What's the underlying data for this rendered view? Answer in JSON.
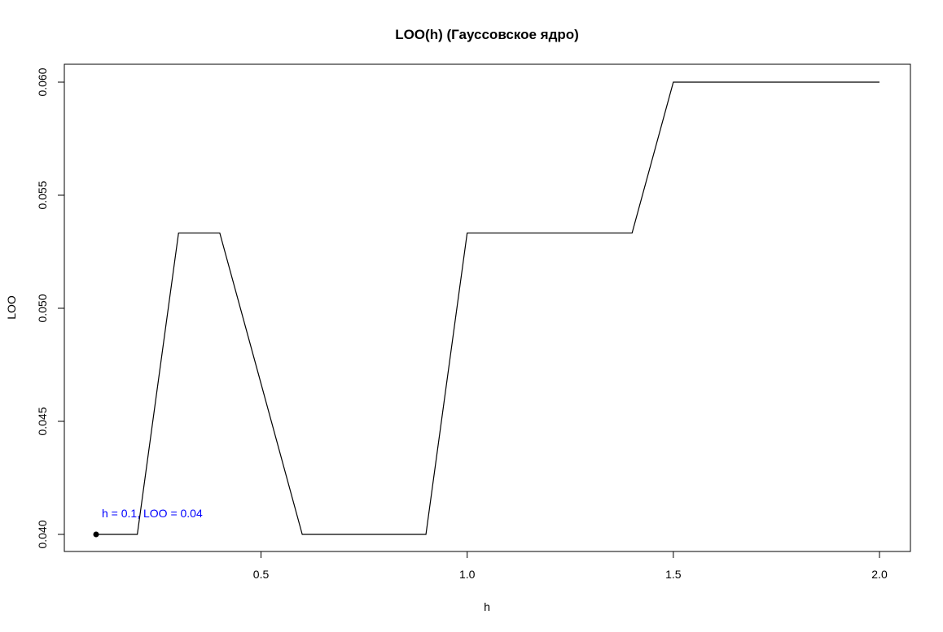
{
  "chart_data": {
    "type": "line",
    "title": "LOO(h) (Гауссовское ядро)",
    "xlabel": "h",
    "ylabel": "LOO",
    "xlim": [
      0.1,
      2.0
    ],
    "ylim": [
      0.04,
      0.06
    ],
    "x_ticks": [
      0.5,
      1.0,
      1.5,
      2.0
    ],
    "x_tick_labels": [
      "0.5",
      "1.0",
      "1.5",
      "2.0"
    ],
    "y_ticks": [
      0.04,
      0.045,
      0.05,
      0.055,
      0.06
    ],
    "y_tick_labels": [
      "0.040",
      "0.045",
      "0.050",
      "0.055",
      "0.060"
    ],
    "grid": false,
    "line_color": "#000000",
    "series": [
      {
        "x": [
          0.1,
          0.2,
          0.3,
          0.4,
          0.5,
          0.6,
          0.7,
          0.8,
          0.9,
          1.0,
          1.1,
          1.2,
          1.3,
          1.4,
          1.5,
          1.6,
          1.7,
          1.8,
          1.9,
          2.0
        ],
        "values": [
          0.04,
          0.04,
          0.05333,
          0.05333,
          0.04667,
          0.04,
          0.04,
          0.04,
          0.04,
          0.05333,
          0.05333,
          0.05333,
          0.05333,
          0.05333,
          0.06,
          0.06,
          0.06,
          0.06,
          0.06,
          0.06
        ]
      }
    ],
    "highlight_point": {
      "x": 0.1,
      "y": 0.04,
      "label": "h = 0.1, LOO = 0.04",
      "label_color": "#0000ff",
      "marker_color": "#000000"
    }
  }
}
